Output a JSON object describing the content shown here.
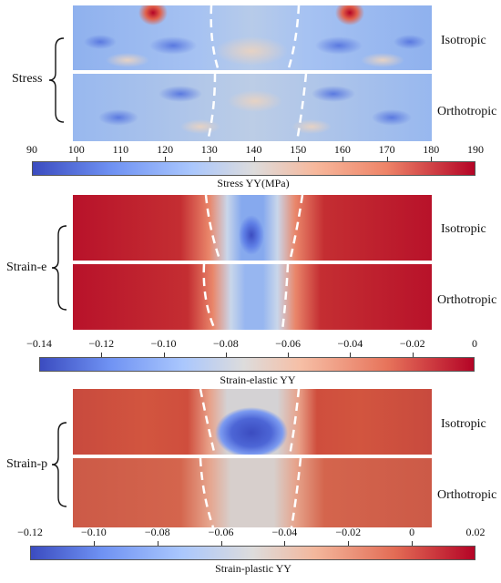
{
  "groups": [
    {
      "id": "stress",
      "quantity": "Stress",
      "top_label": "Isotropic",
      "bottom_label": "Orthotropic",
      "colorbar": {
        "title": "Stress YY(MPa)",
        "ticks": [
          "90",
          "100",
          "110",
          "120",
          "130",
          "140",
          "150",
          "160",
          "170",
          "180",
          "190"
        ],
        "min": 90,
        "max": 190
      }
    },
    {
      "id": "strain-e",
      "quantity": "Strain-e",
      "top_label": "Isotropic",
      "bottom_label": "Orthotropic",
      "colorbar": {
        "title": "Strain-elastic YY",
        "ticks": [
          "−0.14",
          "−0.12",
          "−0.10",
          "−0.08",
          "−0.06",
          "−0.04",
          "−0.02",
          "0"
        ],
        "min": -0.14,
        "max": 0
      }
    },
    {
      "id": "strain-p",
      "quantity": "Strain-p",
      "top_label": "Isotropic",
      "bottom_label": "Orthotropic",
      "colorbar": {
        "title": "Strain-plastic YY",
        "ticks": [
          "−0.12",
          "−0.10",
          "−0.08",
          "−0.06",
          "−0.04",
          "−0.02",
          "0",
          "0.02"
        ],
        "min": -0.12,
        "max": 0.02
      }
    }
  ],
  "colors": {
    "low": "#3b4cc0",
    "mid": "#dddcdc",
    "high": "#b40426",
    "dashed_line": "#ffffff"
  }
}
